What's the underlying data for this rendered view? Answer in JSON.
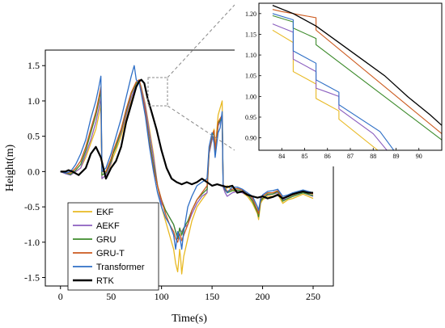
{
  "chart_data": [
    {
      "type": "line",
      "xlabel": "Time(s)",
      "ylabel": "Height(m)",
      "xlim": [
        -15,
        270
      ],
      "ylim": [
        -1.62,
        1.72
      ],
      "xticks": [
        0,
        50,
        100,
        150,
        200,
        250
      ],
      "yticks": [
        1.5,
        1.0,
        0.5,
        0.0,
        -0.5,
        -1.0,
        -1.5
      ],
      "xtick_labels": [
        "0",
        "50",
        "100",
        "150",
        "200",
        "250"
      ],
      "ytick_labels": [
        "1.5",
        "1.0",
        "0.5",
        "0.0",
        "-0.5",
        "-1.0",
        "-1.5"
      ],
      "grid": false,
      "legend_position": "bottom-left",
      "series": [
        {
          "name": "EKF",
          "color": "#e8b923",
          "width": 1.3,
          "x": [
            0,
            5,
            10,
            15,
            20,
            25,
            30,
            35,
            38,
            40,
            41,
            45,
            50,
            52,
            55,
            60,
            65,
            70,
            75,
            78,
            80,
            84,
            88,
            92,
            96,
            100,
            104,
            108,
            112,
            114,
            116,
            118,
            119,
            120,
            122,
            126,
            130,
            135,
            140,
            145,
            147,
            150,
            152,
            153,
            156,
            158,
            160,
            161,
            163,
            165,
            170,
            175,
            180,
            185,
            190,
            195,
            196,
            198,
            200,
            205,
            210,
            215,
            220,
            225,
            230,
            240,
            250
          ],
          "y": [
            0,
            -0.02,
            -0.04,
            0.0,
            0.05,
            0.2,
            0.4,
            0.6,
            0.8,
            0.95,
            -0.1,
            -0.05,
            0.1,
            0.2,
            0.3,
            0.5,
            0.75,
            1.0,
            1.2,
            1.28,
            1.2,
            0.95,
            0.6,
            0.25,
            -0.2,
            -0.5,
            -0.7,
            -0.9,
            -1.1,
            -1.3,
            -1.42,
            -1.1,
            -1.25,
            -1.45,
            -1.2,
            -0.95,
            -0.7,
            -0.5,
            -0.4,
            -0.3,
            0.3,
            0.5,
            0.6,
            0.3,
            0.8,
            0.9,
            1.0,
            -0.2,
            -0.28,
            -0.2,
            -0.27,
            -0.28,
            -0.3,
            -0.35,
            -0.45,
            -0.6,
            -0.68,
            -0.45,
            -0.4,
            -0.35,
            -0.35,
            -0.32,
            -0.45,
            -0.4,
            -0.38,
            -0.32,
            -0.38
          ]
        },
        {
          "name": "AEKF",
          "color": "#8b5fbf",
          "width": 1.3,
          "x": [
            0,
            5,
            10,
            15,
            20,
            25,
            30,
            35,
            38,
            40,
            41,
            45,
            50,
            52,
            55,
            60,
            65,
            70,
            75,
            78,
            80,
            84,
            88,
            92,
            96,
            100,
            104,
            108,
            112,
            114,
            116,
            118,
            119,
            120,
            122,
            126,
            130,
            135,
            140,
            145,
            147,
            150,
            152,
            153,
            156,
            158,
            160,
            161,
            163,
            165,
            170,
            175,
            180,
            185,
            190,
            195,
            196,
            198,
            200,
            205,
            210,
            215,
            220,
            225,
            230,
            240,
            250
          ],
          "y": [
            0,
            -0.03,
            -0.05,
            0.0,
            0.05,
            0.25,
            0.45,
            0.7,
            0.9,
            1.05,
            -0.1,
            -0.05,
            0.12,
            0.25,
            0.35,
            0.55,
            0.8,
            1.05,
            1.22,
            1.28,
            1.18,
            0.92,
            0.55,
            0.2,
            -0.2,
            -0.45,
            -0.55,
            -0.65,
            -0.75,
            -0.85,
            -0.95,
            -0.8,
            -0.85,
            -0.85,
            -0.8,
            -0.75,
            -0.6,
            -0.45,
            -0.35,
            -0.3,
            0.25,
            0.45,
            0.5,
            0.25,
            0.65,
            0.7,
            0.75,
            -0.22,
            -0.3,
            -0.35,
            -0.3,
            -0.28,
            -0.3,
            -0.33,
            -0.4,
            -0.55,
            -0.62,
            -0.42,
            -0.38,
            -0.33,
            -0.32,
            -0.3,
            -0.4,
            -0.38,
            -0.35,
            -0.3,
            -0.35
          ]
        },
        {
          "name": "GRU",
          "color": "#3d8b2c",
          "width": 1.3,
          "x": [
            0,
            5,
            10,
            15,
            20,
            25,
            30,
            35,
            38,
            40,
            41,
            45,
            50,
            52,
            55,
            60,
            65,
            70,
            75,
            78,
            80,
            84,
            88,
            92,
            96,
            100,
            104,
            108,
            112,
            114,
            116,
            118,
            119,
            120,
            122,
            126,
            130,
            135,
            140,
            145,
            147,
            150,
            152,
            153,
            156,
            158,
            160,
            161,
            163,
            165,
            170,
            175,
            180,
            185,
            190,
            195,
            196,
            198,
            200,
            205,
            210,
            215,
            220,
            225,
            230,
            240,
            250
          ],
          "y": [
            0,
            -0.02,
            -0.04,
            0.02,
            0.1,
            0.3,
            0.55,
            0.8,
            1.0,
            1.15,
            -0.05,
            -0.02,
            0.15,
            0.25,
            0.35,
            0.58,
            0.85,
            1.1,
            1.25,
            1.28,
            1.15,
            0.85,
            0.45,
            0.1,
            -0.2,
            -0.4,
            -0.55,
            -0.65,
            -0.75,
            -0.85,
            -0.95,
            -0.8,
            -0.85,
            -0.9,
            -0.8,
            -0.7,
            -0.55,
            -0.4,
            -0.32,
            -0.25,
            0.28,
            0.5,
            0.55,
            0.28,
            0.68,
            0.72,
            0.78,
            -0.2,
            -0.26,
            -0.3,
            -0.27,
            -0.26,
            -0.28,
            -0.32,
            -0.42,
            -0.58,
            -0.64,
            -0.42,
            -0.38,
            -0.32,
            -0.32,
            -0.28,
            -0.42,
            -0.38,
            -0.35,
            -0.3,
            -0.34
          ]
        },
        {
          "name": "GRU-T",
          "color": "#cc5a1e",
          "width": 1.3,
          "x": [
            0,
            5,
            10,
            15,
            20,
            25,
            30,
            35,
            38,
            40,
            41,
            45,
            50,
            52,
            55,
            60,
            65,
            70,
            75,
            78,
            80,
            84,
            88,
            92,
            96,
            100,
            104,
            108,
            112,
            114,
            116,
            118,
            119,
            120,
            122,
            126,
            130,
            135,
            140,
            145,
            147,
            150,
            152,
            153,
            156,
            158,
            160,
            161,
            163,
            165,
            170,
            175,
            180,
            185,
            190,
            195,
            196,
            198,
            200,
            205,
            210,
            215,
            220,
            225,
            230,
            240,
            250
          ],
          "y": [
            0,
            -0.02,
            -0.02,
            0.05,
            0.15,
            0.35,
            0.6,
            0.85,
            1.05,
            1.2,
            0.0,
            0.0,
            0.18,
            0.28,
            0.4,
            0.6,
            0.88,
            1.12,
            1.27,
            1.3,
            1.15,
            0.85,
            0.4,
            0.05,
            -0.2,
            -0.4,
            -0.6,
            -0.75,
            -0.85,
            -0.95,
            -1.0,
            -0.88,
            -0.92,
            -0.98,
            -0.9,
            -0.75,
            -0.55,
            -0.4,
            -0.3,
            -0.2,
            0.3,
            0.52,
            0.58,
            0.3,
            0.7,
            0.75,
            0.8,
            -0.18,
            -0.24,
            -0.28,
            -0.25,
            -0.24,
            -0.26,
            -0.3,
            -0.38,
            -0.55,
            -0.6,
            -0.4,
            -0.35,
            -0.3,
            -0.3,
            -0.27,
            -0.38,
            -0.36,
            -0.33,
            -0.28,
            -0.32
          ]
        },
        {
          "name": "Transformer",
          "color": "#2f6fc6",
          "width": 1.3,
          "x": [
            0,
            5,
            10,
            15,
            20,
            25,
            30,
            35,
            38,
            40,
            41,
            45,
            50,
            52,
            55,
            60,
            65,
            70,
            73,
            75,
            78,
            80,
            84,
            88,
            92,
            96,
            100,
            104,
            108,
            112,
            114,
            116,
            118,
            119,
            120,
            122,
            126,
            130,
            135,
            140,
            145,
            147,
            150,
            152,
            153,
            156,
            158,
            160,
            161,
            163,
            165,
            170,
            175,
            180,
            185,
            190,
            195,
            196,
            198,
            200,
            205,
            210,
            215,
            220,
            225,
            230,
            240,
            250
          ],
          "y": [
            0,
            -0.02,
            0.0,
            0.1,
            0.25,
            0.45,
            0.75,
            1.0,
            1.2,
            1.35,
            0.0,
            0.05,
            0.25,
            0.35,
            0.5,
            0.75,
            1.05,
            1.35,
            1.5,
            1.3,
            1.25,
            1.1,
            0.78,
            0.35,
            0.0,
            -0.3,
            -0.5,
            -0.65,
            -0.75,
            -0.9,
            -1.1,
            -0.85,
            -0.95,
            -1.0,
            -1.1,
            -0.85,
            -0.5,
            -0.35,
            -0.2,
            -0.15,
            -0.1,
            0.35,
            0.55,
            0.4,
            0.2,
            0.55,
            0.62,
            0.85,
            -0.2,
            -0.25,
            -0.3,
            -0.22,
            -0.22,
            -0.25,
            -0.3,
            -0.35,
            -0.5,
            -0.55,
            -0.38,
            -0.33,
            -0.28,
            -0.27,
            -0.25,
            -0.35,
            -0.33,
            -0.3,
            -0.26,
            -0.3
          ]
        },
        {
          "name": "RTK",
          "color": "#000000",
          "width": 2.2,
          "x": [
            0,
            5,
            8,
            12,
            18,
            25,
            30,
            35,
            40,
            45,
            50,
            55,
            60,
            65,
            70,
            75,
            78,
            80,
            83,
            86,
            90,
            95,
            100,
            105,
            110,
            115,
            120,
            125,
            130,
            135,
            140,
            145,
            150,
            155,
            160,
            165,
            170,
            175,
            180,
            185,
            190,
            195,
            200,
            205,
            210,
            215,
            220,
            225,
            230,
            235,
            240,
            245,
            250
          ],
          "y": [
            0,
            0.0,
            0.02,
            0.0,
            -0.05,
            0.05,
            0.25,
            0.35,
            0.2,
            -0.1,
            0.05,
            0.15,
            0.35,
            0.7,
            0.95,
            1.2,
            1.28,
            1.3,
            1.25,
            1.05,
            0.85,
            0.6,
            0.3,
            0.05,
            -0.1,
            -0.15,
            -0.18,
            -0.15,
            -0.18,
            -0.15,
            -0.1,
            -0.15,
            -0.2,
            -0.18,
            -0.2,
            -0.22,
            -0.2,
            -0.3,
            -0.28,
            -0.33,
            -0.35,
            -0.37,
            -0.35,
            -0.38,
            -0.36,
            -0.33,
            -0.38,
            -0.35,
            -0.32,
            -0.3,
            -0.28,
            -0.3,
            -0.3
          ]
        }
      ]
    },
    {
      "type": "line",
      "role": "inset-zoom",
      "xlim": [
        83,
        91
      ],
      "ylim": [
        0.87,
        1.225
      ],
      "xticks": [
        84,
        85,
        86,
        87,
        88,
        89,
        90
      ],
      "yticks": [
        1.2,
        1.15,
        1.1,
        1.05,
        1.0,
        0.95,
        0.9
      ],
      "xtick_labels": [
        "84",
        "85",
        "86",
        "87",
        "88",
        "89",
        "90"
      ],
      "ytick_labels": [
        "1.20",
        "1.15",
        "1.10",
        "1.05",
        "1.00",
        "0.95",
        "0.90"
      ],
      "grid": false,
      "series": [
        {
          "name": "EKF",
          "color": "#e8b923",
          "width": 1.1,
          "x": [
            83.6,
            84.5,
            84.5,
            85.5,
            85.5,
            86.5,
            86.5,
            88.2
          ],
          "y": [
            1.16,
            1.13,
            1.06,
            1.03,
            0.995,
            0.965,
            0.945,
            0.87
          ]
        },
        {
          "name": "AEKF",
          "color": "#8b5fbf",
          "width": 1.1,
          "x": [
            83.6,
            84.5,
            84.5,
            85.5,
            85.5,
            86.0,
            86.5,
            86.5,
            88.0,
            88.6
          ],
          "y": [
            1.175,
            1.155,
            1.09,
            1.06,
            1.02,
            1.01,
            1.0,
            0.97,
            0.91,
            0.87
          ]
        },
        {
          "name": "GRU",
          "color": "#3d8b2c",
          "width": 1.1,
          "x": [
            83.6,
            84.5,
            84.5,
            85.5,
            85.5,
            91
          ],
          "y": [
            1.195,
            1.18,
            1.165,
            1.14,
            1.125,
            0.895
          ]
        },
        {
          "name": "GRU-T",
          "color": "#cc5a1e",
          "width": 1.1,
          "x": [
            83.6,
            84.0,
            84.5,
            85.0,
            85.5,
            85.5,
            91
          ],
          "y": [
            1.21,
            1.205,
            1.2,
            1.195,
            1.19,
            1.16,
            0.91
          ]
        },
        {
          "name": "Transformer",
          "color": "#2f6fc6",
          "width": 1.1,
          "x": [
            83.6,
            84.5,
            84.5,
            85.5,
            85.5,
            86.0,
            86.5,
            86.5,
            88.3,
            88.9
          ],
          "y": [
            1.2,
            1.185,
            1.11,
            1.08,
            1.04,
            1.025,
            1.01,
            0.98,
            0.915,
            0.87
          ]
        },
        {
          "name": "RTK",
          "color": "#000000",
          "width": 1.3,
          "x": [
            83.6,
            84.5,
            85.5,
            86.5,
            87.5,
            88.5,
            89.5,
            90.5,
            91
          ],
          "y": [
            1.22,
            1.2,
            1.17,
            1.13,
            1.09,
            1.05,
            1.0,
            0.955,
            0.93
          ]
        }
      ]
    }
  ]
}
